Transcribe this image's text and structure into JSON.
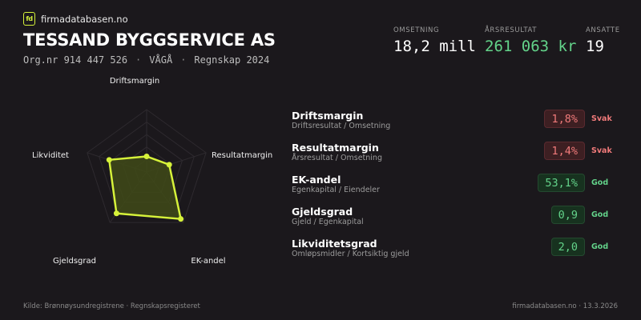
{
  "brand": {
    "logo_text": "fd",
    "name": "firmadatabasen.no"
  },
  "company": {
    "name": "TESSAND BYGGSERVICE AS",
    "org": "Org.nr 914 447 526",
    "place": "VÅGÅ",
    "year": "Regnskap 2024",
    "sep": "·"
  },
  "kpis": [
    {
      "label": "OMSETNING",
      "value": "18,2 mill",
      "color": "#ffffff"
    },
    {
      "label": "ÅRSRESULTAT",
      "value": "261 063 kr",
      "color": "#63d38a"
    },
    {
      "label": "ANSATTE",
      "value": "19",
      "color": "#ffffff"
    }
  ],
  "radar": {
    "axes": [
      "Driftsmargin",
      "Resultatmargin",
      "EK-andel",
      "Gjeldsgrad",
      "Likviditet"
    ],
    "scores": [
      0.25,
      0.38,
      0.93,
      0.82,
      0.63
    ],
    "stroke_color": "#d6f23a",
    "fill_color": "#3f4a17"
  },
  "metrics": [
    {
      "name": "Driftsmargin",
      "desc": "Driftsresultat / Omsetning",
      "value": "1,8%",
      "rating": "Svak",
      "status": "bad"
    },
    {
      "name": "Resultatmargin",
      "desc": "Årsresultat / Omsetning",
      "value": "1,4%",
      "rating": "Svak",
      "status": "bad"
    },
    {
      "name": "EK-andel",
      "desc": "Egenkapital / Eiendeler",
      "value": "53,1%",
      "rating": "God",
      "status": "good"
    },
    {
      "name": "Gjeldsgrad",
      "desc": "Gjeld / Egenkapital",
      "value": "0,9",
      "rating": "God",
      "status": "good"
    },
    {
      "name": "Likviditetsgrad",
      "desc": "Omløpsmidler / Kortsiktig gjeld",
      "value": "2,0",
      "rating": "God",
      "status": "good"
    }
  ],
  "footer": {
    "source": "Kilde: Brønnøysundregistrene · Regnskapsregisteret",
    "site_date": "firmadatabasen.no · 13.3.2026"
  }
}
